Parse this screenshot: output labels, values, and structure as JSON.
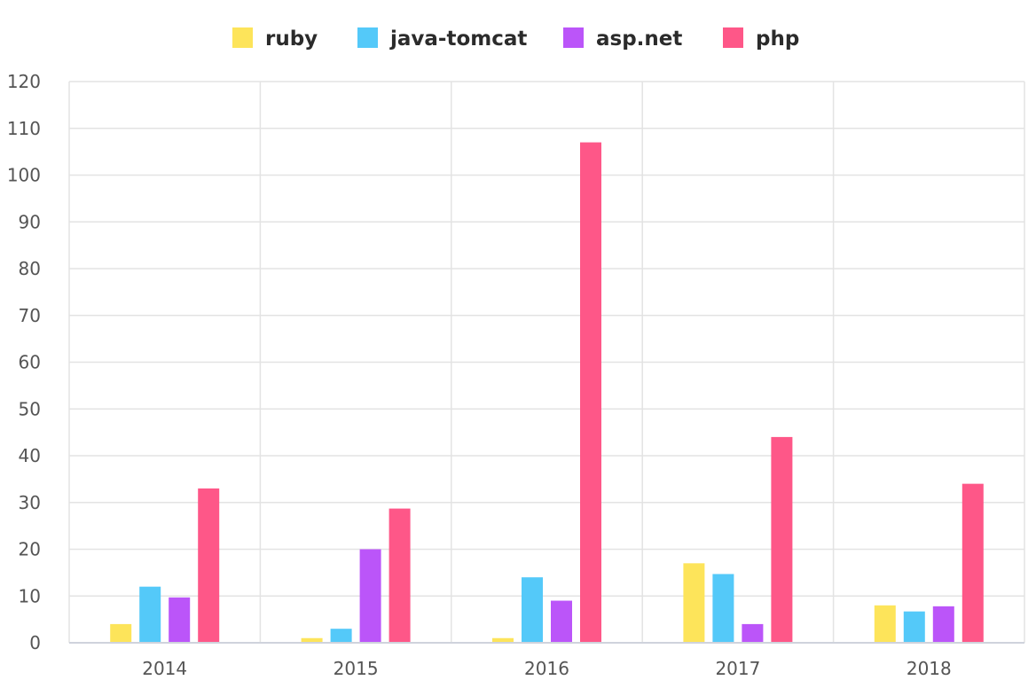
{
  "chart_data": {
    "type": "bar",
    "categories": [
      "2014",
      "2015",
      "2016",
      "2017",
      "2018"
    ],
    "series": [
      {
        "name": "ruby",
        "color": "#FDE45A",
        "values": [
          4,
          1,
          1,
          17,
          8
        ]
      },
      {
        "name": "java-tomcat",
        "color": "#54C9F9",
        "values": [
          12,
          3,
          14,
          14.7,
          6.7
        ]
      },
      {
        "name": "asp.net",
        "color": "#BB55F9",
        "values": [
          9.7,
          20,
          9,
          4,
          7.8
        ]
      },
      {
        "name": "php",
        "color": "#FE5788",
        "values": [
          33,
          28.7,
          107,
          44,
          34
        ]
      }
    ],
    "ylim": [
      0,
      120
    ],
    "yticks": [
      0,
      10,
      20,
      30,
      40,
      50,
      60,
      70,
      80,
      90,
      100,
      110,
      120
    ],
    "grid": true,
    "legend": "top-center",
    "title": "",
    "xlabel": "",
    "ylabel": ""
  }
}
